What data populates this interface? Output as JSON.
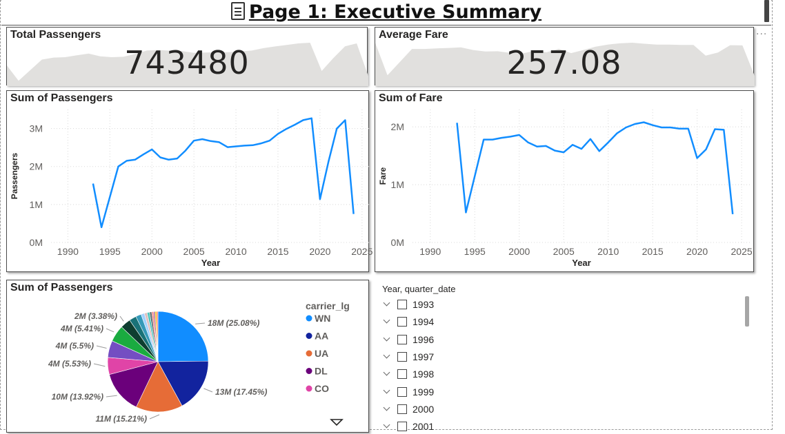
{
  "page": {
    "title": "Page 1: Executive Summary",
    "icon": "document-icon"
  },
  "kpis": {
    "total_passengers": {
      "title": "Total Passengers",
      "value": "743480"
    },
    "average_fare": {
      "title": "Average Fare",
      "value": "257.08"
    }
  },
  "charts": {
    "passengers": {
      "title": "Sum of Passengers",
      "xlabel": "Year",
      "ylabel": "Passengers"
    },
    "fare": {
      "title": "Sum of Fare",
      "xlabel": "Year",
      "ylabel": "Fare"
    },
    "pie": {
      "title": "Sum of Passengers",
      "legend_title": "carrier_lg"
    }
  },
  "chart_data": [
    {
      "type": "line",
      "title": "Sum of Passengers",
      "xlabel": "Year",
      "ylabel": "Passengers",
      "xlim": [
        1988,
        2026
      ],
      "ylim": [
        0,
        3500000
      ],
      "xticks": [
        1990,
        1995,
        2000,
        2005,
        2010,
        2015,
        2020,
        2025
      ],
      "yticks": [
        0,
        1000000,
        2000000,
        3000000
      ],
      "ytick_labels": [
        "0M",
        "1M",
        "2M",
        "3M"
      ],
      "grid": true,
      "color": "#118DFF",
      "x": [
        1993,
        1994,
        1996,
        1997,
        1998,
        1999,
        2000,
        2001,
        2002,
        2003,
        2004,
        2005,
        2006,
        2007,
        2008,
        2009,
        2010,
        2011,
        2012,
        2013,
        2014,
        2015,
        2016,
        2017,
        2018,
        2019,
        2020,
        2021,
        2022,
        2023,
        2024
      ],
      "y": [
        1550000,
        400000,
        2000000,
        2150000,
        2180000,
        2320000,
        2450000,
        2240000,
        2180000,
        2210000,
        2420000,
        2680000,
        2720000,
        2670000,
        2640000,
        2510000,
        2530000,
        2550000,
        2560000,
        2610000,
        2680000,
        2860000,
        2990000,
        3100000,
        3220000,
        3270000,
        1140000,
        2120000,
        3000000,
        3220000,
        750000
      ]
    },
    {
      "type": "line",
      "title": "Sum of Fare",
      "xlabel": "Year",
      "ylabel": "Fare",
      "xlim": [
        1988,
        2026
      ],
      "ylim": [
        0,
        2300000
      ],
      "xticks": [
        1990,
        1995,
        2000,
        2005,
        2010,
        2015,
        2020,
        2025
      ],
      "yticks": [
        0,
        1000000,
        2000000
      ],
      "ytick_labels": [
        "0M",
        "1M",
        "2M"
      ],
      "grid": true,
      "color": "#118DFF",
      "x": [
        1993,
        1994,
        1996,
        1997,
        1998,
        1999,
        2000,
        2001,
        2002,
        2003,
        2004,
        2005,
        2006,
        2007,
        2008,
        2009,
        2010,
        2011,
        2012,
        2013,
        2014,
        2015,
        2016,
        2017,
        2018,
        2019,
        2020,
        2021,
        2022,
        2023,
        2024
      ],
      "y": [
        2070000,
        520000,
        1780000,
        1780000,
        1810000,
        1830000,
        1860000,
        1730000,
        1660000,
        1670000,
        1590000,
        1560000,
        1690000,
        1620000,
        1790000,
        1580000,
        1730000,
        1890000,
        1990000,
        2050000,
        2080000,
        2030000,
        1990000,
        1990000,
        1970000,
        1970000,
        1460000,
        1610000,
        1960000,
        1950000,
        490000
      ]
    },
    {
      "type": "pie",
      "title": "Sum of Passengers",
      "legend_title": "carrier_lg",
      "legend_placement": "right",
      "slices": [
        {
          "name": "WN",
          "label": "18M (25.08%)",
          "percent": 25.08,
          "color": "#118DFF"
        },
        {
          "name": "AA",
          "label": "13M (17.45%)",
          "percent": 17.45,
          "color": "#12239E"
        },
        {
          "name": "UA",
          "label": "11M (15.21%)",
          "percent": 15.21,
          "color": "#E66C37"
        },
        {
          "name": "DL",
          "label": "10M (13.92%)",
          "percent": 13.92,
          "color": "#6B007B"
        },
        {
          "name": "CO",
          "label": "4M (5.53%)",
          "percent": 5.53,
          "color": "#E044A7"
        },
        {
          "name": "",
          "label": "4M (5.5%)",
          "percent": 5.5,
          "color": "#744EC2"
        },
        {
          "name": "",
          "label": "4M (5.41%)",
          "percent": 5.41,
          "color": "#1AAB40"
        },
        {
          "name": "",
          "label": "2M (3.38%)",
          "percent": 3.38,
          "color": "#0E3E30"
        },
        {
          "name": "",
          "label": "",
          "percent": 2.3,
          "color": "#197278"
        },
        {
          "name": "",
          "label": "",
          "percent": 1.8,
          "color": "#3599B8"
        },
        {
          "name": "",
          "label": "",
          "percent": 1.1,
          "color": "#A0D1FF"
        },
        {
          "name": "",
          "label": "",
          "percent": 0.9,
          "color": "#DFBFBF"
        },
        {
          "name": "",
          "label": "",
          "percent": 0.8,
          "color": "#4AC5BB"
        },
        {
          "name": "",
          "label": "",
          "percent": 0.7,
          "color": "#5F6B6D"
        },
        {
          "name": "",
          "label": "",
          "percent": 0.6,
          "color": "#FB8281"
        },
        {
          "name": "",
          "label": "",
          "percent": 0.5,
          "color": "#A66999"
        },
        {
          "name": "",
          "label": "",
          "percent": 0.5,
          "color": "#F2C80F"
        },
        {
          "name": "",
          "label": "",
          "percent": 0.42,
          "color": "#FD625E"
        }
      ],
      "legend": [
        "WN",
        "AA",
        "UA",
        "DL",
        "CO"
      ]
    }
  ],
  "slicer": {
    "header": "Year, quarter_date",
    "items": [
      "1993",
      "1994",
      "1996",
      "1997",
      "1998",
      "1999",
      "2000",
      "2001"
    ]
  },
  "colors": {
    "accent": "#118DFF",
    "sparkline": "#E1E0DE",
    "border": "#4A4A4A"
  }
}
